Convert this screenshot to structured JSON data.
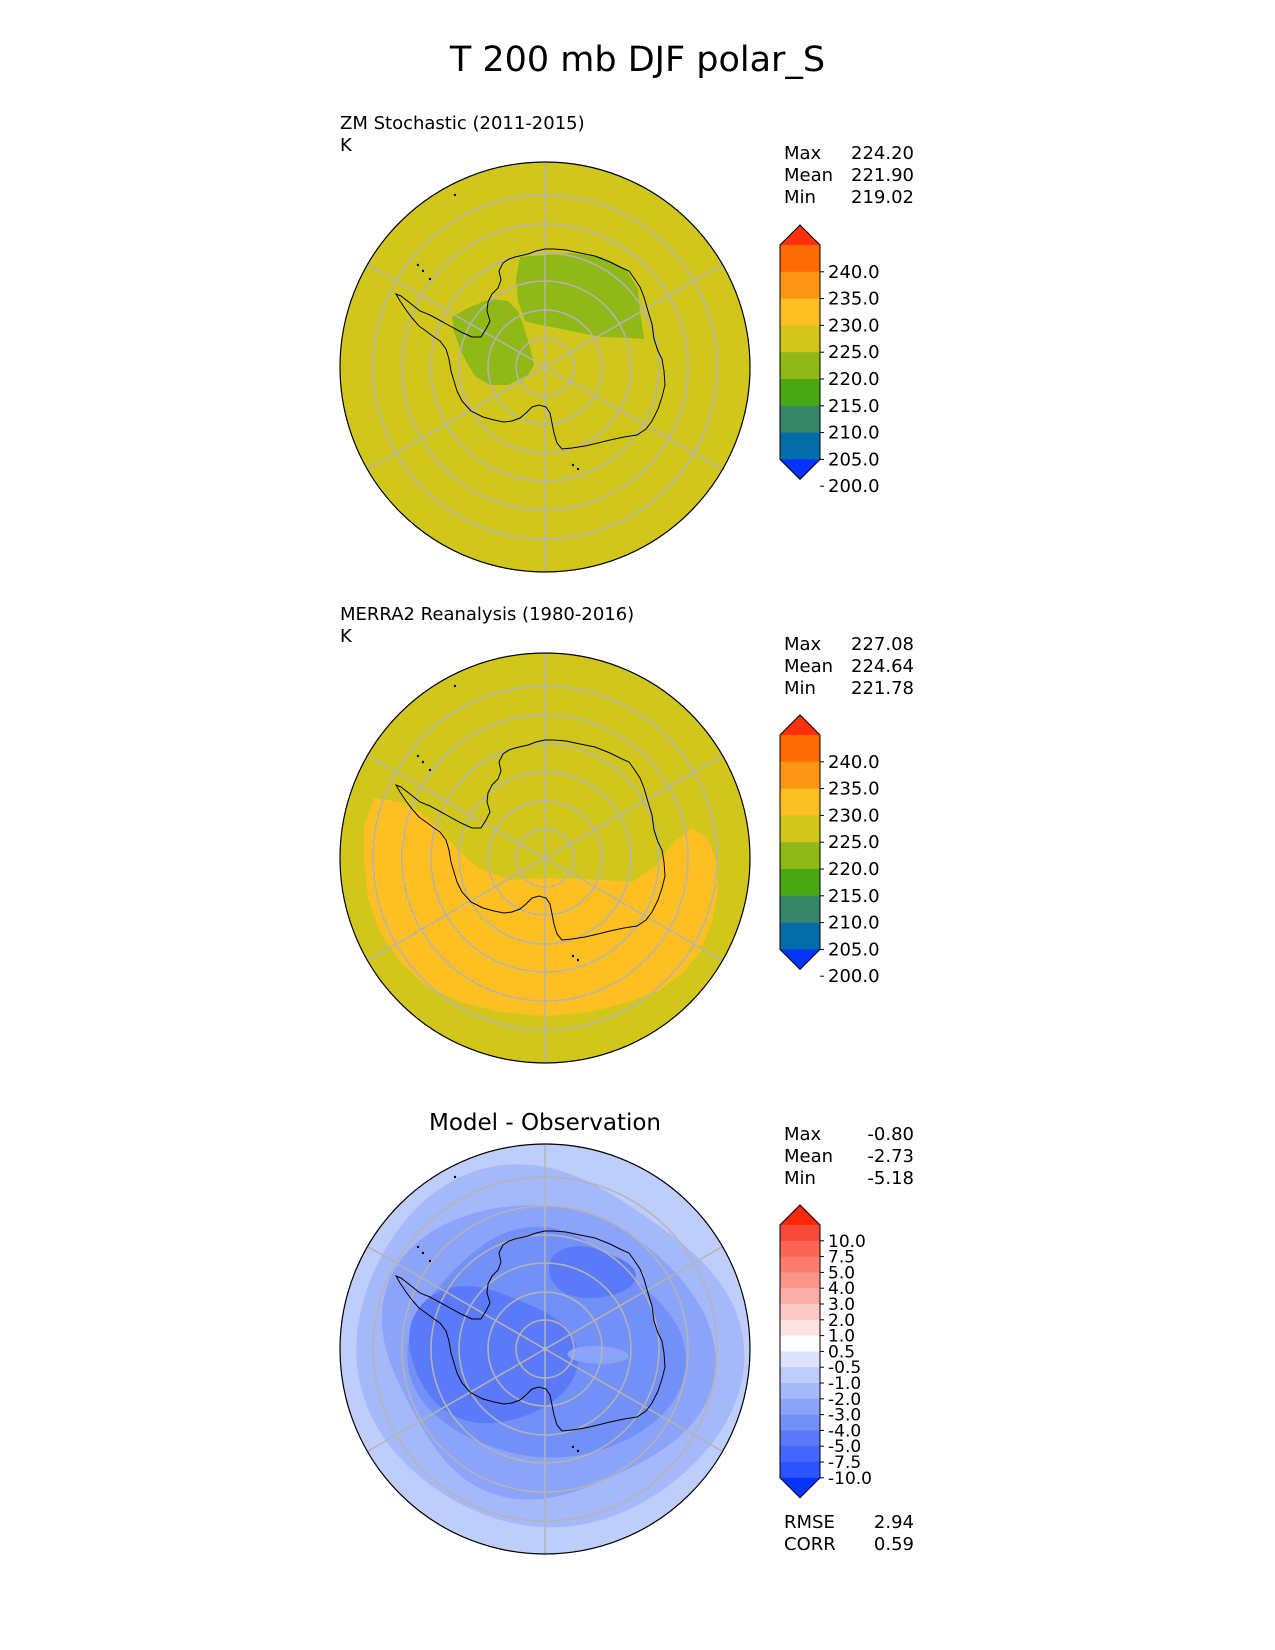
{
  "title": "T 200 mb DJF polar_S",
  "panels": [
    {
      "id": "test",
      "title": "ZM Stochastic (2011-2015)",
      "units": "K",
      "stats": [
        {
          "label": "Max",
          "value": "224.20"
        },
        {
          "label": "Mean",
          "value": "221.90"
        },
        {
          "label": "Min",
          "value": "219.02"
        }
      ]
    },
    {
      "id": "reference",
      "title": "MERRA2 Reanalysis (1980-2016)",
      "units": "K",
      "stats": [
        {
          "label": "Max",
          "value": "227.08"
        },
        {
          "label": "Mean",
          "value": "224.64"
        },
        {
          "label": "Min",
          "value": "221.78"
        }
      ]
    },
    {
      "id": "diff",
      "title": "Model - Observation",
      "stats": [
        {
          "label": "Max",
          "value": "-0.80"
        },
        {
          "label": "Mean",
          "value": "-2.73"
        },
        {
          "label": "Min",
          "value": "-5.18"
        }
      ],
      "metrics": [
        {
          "label": "RMSE",
          "value": "2.94"
        },
        {
          "label": "CORR",
          "value": "0.59"
        }
      ]
    }
  ],
  "chart_data": [
    {
      "type": "heatmap",
      "projection": "south polar stereographic",
      "title": "ZM Stochastic (2011-2015)",
      "units": "K",
      "colorbar": {
        "levels": [
          "200.0",
          "205.0",
          "210.0",
          "215.0",
          "220.0",
          "225.0",
          "230.0",
          "235.0",
          "240.0"
        ],
        "colors": [
          "#0433ff",
          "#046da8",
          "#38866a",
          "#4aa714",
          "#90b818",
          "#d1c71c",
          "#fdbf22",
          "#fd9414",
          "#fe6a04",
          "#ff300c"
        ],
        "extend": "both"
      },
      "regions": [
        {
          "label": "background",
          "range": "220.0-225.0"
        },
        {
          "label": "East Antarctic plateau",
          "range": "215.0-220.0"
        },
        {
          "label": "West Antarctic / Ross sector",
          "range": "215.0-220.0"
        }
      ]
    },
    {
      "type": "heatmap",
      "projection": "south polar stereographic",
      "title": "MERRA2 Reanalysis (1980-2016)",
      "units": "K",
      "colorbar": {
        "levels": [
          "200.0",
          "205.0",
          "210.0",
          "215.0",
          "220.0",
          "225.0",
          "230.0",
          "235.0",
          "240.0"
        ],
        "colors": [
          "#0433ff",
          "#046da8",
          "#38866a",
          "#4aa714",
          "#90b818",
          "#d1c71c",
          "#fdbf22",
          "#fd9414",
          "#fe6a04",
          "#ff300c"
        ],
        "extend": "both"
      },
      "regions": [
        {
          "label": "background",
          "range": "220.0-225.0"
        },
        {
          "label": "southern crescent",
          "range": "225.0-230.0"
        }
      ]
    },
    {
      "type": "heatmap",
      "projection": "south polar stereographic",
      "title": "Model - Observation",
      "colorbar": {
        "levels": [
          "-10.0",
          "-7.5",
          "-5.0",
          "-4.0",
          "-3.0",
          "-2.0",
          "-1.0",
          "-0.5",
          "0.5",
          "1.0",
          "2.0",
          "3.0",
          "4.0",
          "5.0",
          "7.5",
          "10.0"
        ],
        "colors": [
          "#0432ff",
          "#2d53ff",
          "#4466fc",
          "#5b7afa",
          "#7290f8",
          "#8ba3f8",
          "#a5b8f9",
          "#bfcdfb",
          "#dce3fd",
          "#ffffff",
          "#fde2e2",
          "#fdc9c6",
          "#fcaea8",
          "#fb9589",
          "#fa7c6d",
          "#f96453",
          "#f84a38",
          "#ff2a0a"
        ],
        "extend": "both"
      },
      "regions": [
        {
          "label": "outer ring",
          "range": "-2.0 to -1.0"
        },
        {
          "label": "mid ring",
          "range": "-3.0 to -2.0"
        },
        {
          "label": "continent",
          "range": "-4.0 to -3.0"
        },
        {
          "label": "cold core",
          "range": "-5.0 to -4.0"
        }
      ]
    }
  ]
}
